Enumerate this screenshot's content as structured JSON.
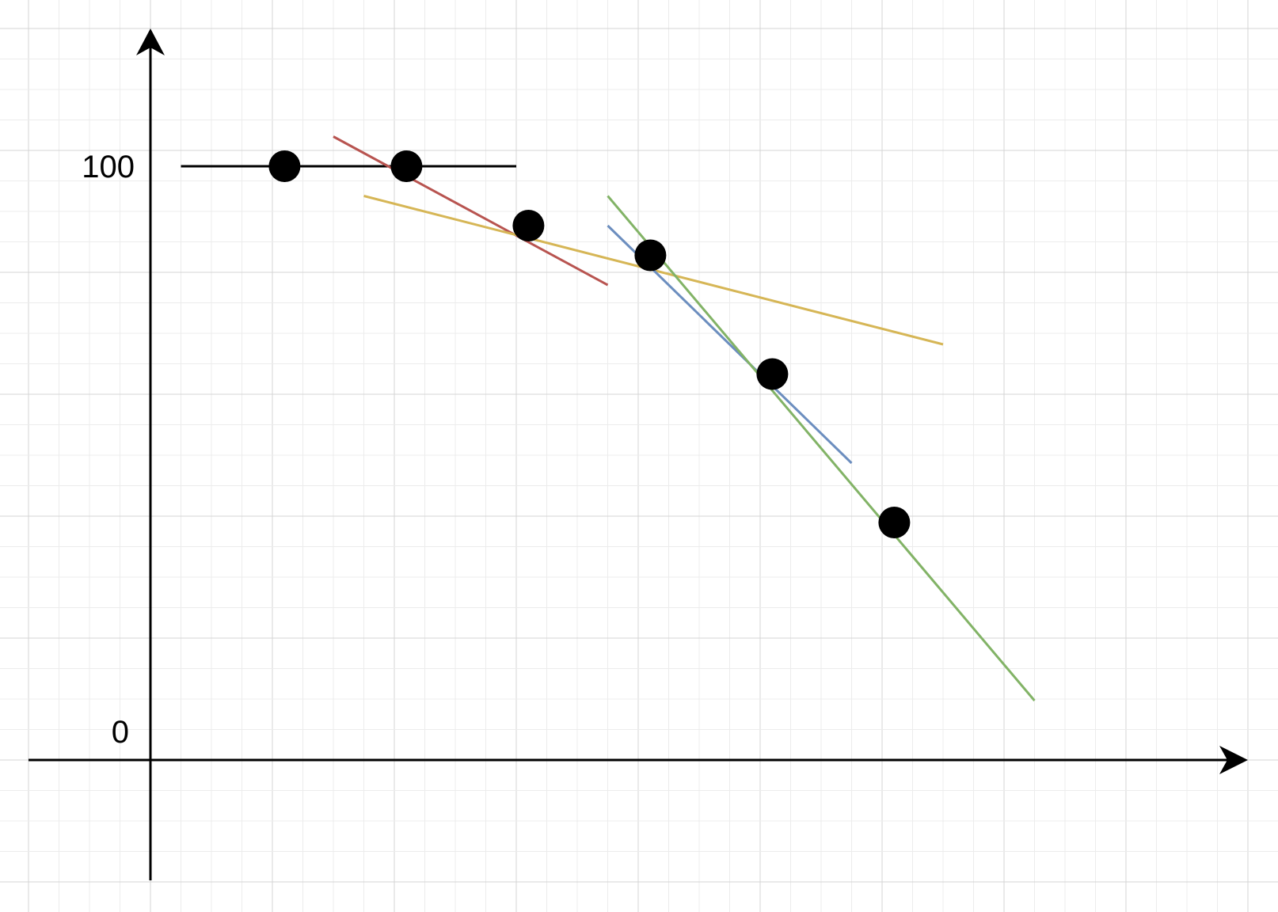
{
  "axes": {
    "y_tick_top": "100",
    "y_tick_bottom": "0"
  },
  "points": [
    {
      "x": 1.1,
      "y": 100
    },
    {
      "x": 2.1,
      "y": 100
    },
    {
      "x": 3.1,
      "y": 90
    },
    {
      "x": 4.1,
      "y": 85
    },
    {
      "x": 5.1,
      "y": 65
    },
    {
      "x": 6.1,
      "y": 40
    }
  ],
  "lines": [
    {
      "color": "#000000",
      "from": {
        "x": 0.25,
        "y": 100
      },
      "to": {
        "x": 3.0,
        "y": 100
      }
    },
    {
      "color": "#b85450",
      "from": {
        "x": 1.5,
        "y": 105
      },
      "to": {
        "x": 3.75,
        "y": 80
      }
    },
    {
      "color": "#d6b656",
      "from": {
        "x": 1.75,
        "y": 95
      },
      "to": {
        "x": 6.5,
        "y": 70
      }
    },
    {
      "color": "#6c8ebf",
      "from": {
        "x": 3.75,
        "y": 90
      },
      "to": {
        "x": 5.75,
        "y": 50
      }
    },
    {
      "color": "#82b366",
      "from": {
        "x": 3.75,
        "y": 95
      },
      "to": {
        "x": 7.25,
        "y": 10
      }
    }
  ]
}
